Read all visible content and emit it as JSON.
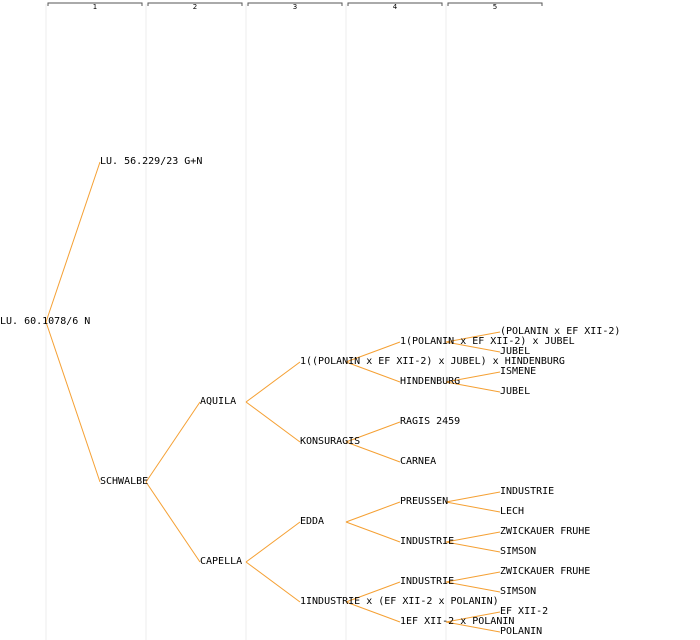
{
  "colors": {
    "edge": "#f5a033",
    "column_guide": "#ececec",
    "header_bracket": "#555555",
    "text": "#000000"
  },
  "generations": [
    "1",
    "2",
    "3",
    "4",
    "5"
  ],
  "nodes": {
    "root": "LU. 60.1078/6 N",
    "g1a": "LU. 56.229/23 G+N",
    "g1b": "SCHWALBE",
    "g2a": "AQUILA",
    "g2b": "CAPELLA",
    "g3a": "1((POLANIN x EF XII-2) x JUBEL) x HINDENBURG",
    "g3b": "KONSURAGIS",
    "g3c": "EDDA",
    "g3d": "1INDUSTRIE x (EF XII-2 x POLANIN)",
    "g4a": "1(POLANIN x EF XII-2) x JUBEL",
    "g4b": "HINDENBURG",
    "g4c": "RAGIS 2459",
    "g4d": "CARNEA",
    "g4e": "PREUSSEN",
    "g4f": "INDUSTRIE",
    "g4g": "INDUSTRIE",
    "g4h": "1EF XII-2 x POLANIN",
    "g5a": "(POLANIN x EF XII-2)",
    "g5b": "JUBEL",
    "g5c": "ISMENE",
    "g5d": "JUBEL",
    "g5e": "INDUSTRIE",
    "g5f": "LECH",
    "g5g": "ZWICKAUER FRUHE",
    "g5h": "SIMSON",
    "g5i": "ZWICKAUER FRUHE",
    "g5j": "SIMSON",
    "g5k": "EF XII-2",
    "g5l": "POLANIN"
  }
}
